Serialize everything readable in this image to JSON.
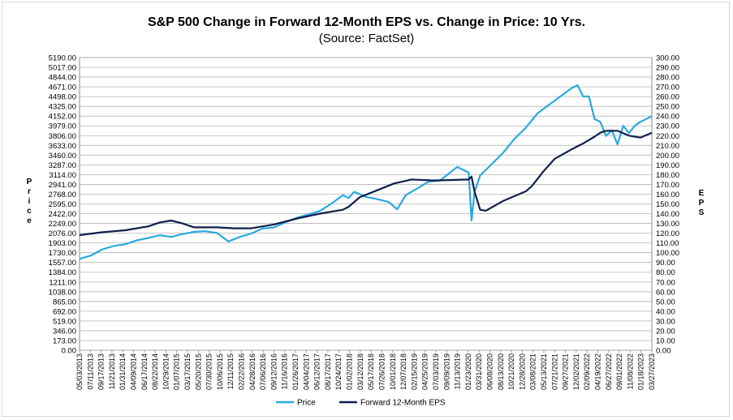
{
  "chart_data": {
    "type": "line",
    "title": "S&P 500 Change in Forward 12-Month EPS vs. Change in Price: 10 Yrs.",
    "subtitle": "(Source: FactSet)",
    "ylabel_left": "Price",
    "ylabel_right": "EPS",
    "ylim_left": [
      0,
      5190
    ],
    "ylim_right": [
      0,
      300
    ],
    "y_ticks_left": [
      "5190.00",
      "5017.00",
      "4844.00",
      "4671.00",
      "4498.00",
      "4325.00",
      "4152.00",
      "3979.00",
      "3806.00",
      "3633.00",
      "3460.00",
      "3287.00",
      "3114.00",
      "2941.00",
      "2768.00",
      "2595.00",
      "2422.00",
      "2249.00",
      "2076.00",
      "1903.00",
      "1730.00",
      "1557.00",
      "1384.00",
      "1211.00",
      "1038.00",
      "865.00",
      "692.00",
      "519.00",
      "346.00",
      "173.00",
      "0.00"
    ],
    "y_ticks_right": [
      "300.00",
      "290.00",
      "280.00",
      "270.00",
      "260.00",
      "250.00",
      "240.00",
      "230.00",
      "220.00",
      "210.00",
      "200.00",
      "190.00",
      "180.00",
      "170.00",
      "160.00",
      "150.00",
      "140.00",
      "130.00",
      "120.00",
      "110.00",
      "100.00",
      "90.00",
      "80.00",
      "70.00",
      "60.00",
      "50.00",
      "40.00",
      "30.00",
      "20.00",
      "10.00",
      "0.00"
    ],
    "x_ticks": [
      "05/03/2013",
      "07/11/2013",
      "09/17/2013",
      "11/21/2013",
      "01/31/2014",
      "04/09/2014",
      "06/17/2014",
      "08/22/2014",
      "10/29/2014",
      "01/07/2015",
      "03/17/2015",
      "05/20/2015",
      "07/30/2015",
      "10/06/2015",
      "12/11/2015",
      "02/22/2016",
      "04/28/2016",
      "07/06/2016",
      "09/12/2016",
      "11/16/2016",
      "01/26/2017",
      "04/04/2017",
      "06/12/2017",
      "08/17/2017",
      "10/24/2017",
      "01/02/2018",
      "03/12/2018",
      "05/17/2018",
      "07/26/2018",
      "10/01/2018",
      "12/07/2018",
      "02/15/2019",
      "04/25/2019",
      "07/03/2019",
      "09/09/2019",
      "11/13/2019",
      "01/23/2020",
      "03/31/2020",
      "06/08/2020",
      "08/13/2020",
      "10/21/2020",
      "12/28/2020",
      "03/08/2021",
      "05/13/2021",
      "07/21/2021",
      "09/27/2021",
      "12/02/2021",
      "02/09/2022",
      "04/19/2022",
      "06/27/2022",
      "09/01/2022",
      "11/08/2022",
      "01/18/2023",
      "03/27/2023"
    ],
    "grid": true,
    "legend_position": "bottom",
    "colors": {
      "price": "#29A8E0",
      "eps": "#0F1F4B"
    },
    "series": [
      {
        "name": "Price",
        "axis": "left",
        "t": [
          0.0,
          0.02,
          0.04,
          0.06,
          0.08,
          0.1,
          0.12,
          0.14,
          0.16,
          0.18,
          0.2,
          0.22,
          0.24,
          0.26,
          0.28,
          0.3,
          0.32,
          0.34,
          0.36,
          0.38,
          0.4,
          0.42,
          0.44,
          0.46,
          0.47,
          0.48,
          0.5,
          0.52,
          0.54,
          0.555,
          0.57,
          0.59,
          0.61,
          0.63,
          0.66,
          0.68,
          0.685,
          0.69,
          0.7,
          0.72,
          0.74,
          0.76,
          0.78,
          0.8,
          0.82,
          0.84,
          0.86,
          0.87,
          0.88,
          0.89,
          0.9,
          0.91,
          0.92,
          0.93,
          0.94,
          0.95,
          0.96,
          0.97,
          0.98,
          0.99,
          1.0
        ],
        "values": [
          1620,
          1680,
          1790,
          1850,
          1880,
          1950,
          1990,
          2040,
          2010,
          2060,
          2100,
          2110,
          2080,
          1930,
          2010,
          2070,
          2160,
          2180,
          2270,
          2350,
          2410,
          2470,
          2600,
          2750,
          2700,
          2810,
          2720,
          2680,
          2630,
          2500,
          2750,
          2870,
          2990,
          3010,
          3250,
          3150,
          2300,
          2800,
          3100,
          3300,
          3500,
          3750,
          3950,
          4200,
          4350,
          4500,
          4650,
          4700,
          4500,
          4500,
          4100,
          4050,
          3800,
          3900,
          3650,
          3980,
          3850,
          3980,
          4050,
          4100,
          4150
        ]
      },
      {
        "name": "Forward 12-Month EPS",
        "axis": "right",
        "t": [
          0.0,
          0.04,
          0.08,
          0.12,
          0.14,
          0.16,
          0.18,
          0.2,
          0.24,
          0.27,
          0.3,
          0.34,
          0.38,
          0.42,
          0.46,
          0.47,
          0.49,
          0.52,
          0.55,
          0.58,
          0.62,
          0.68,
          0.685,
          0.69,
          0.7,
          0.71,
          0.74,
          0.78,
          0.79,
          0.81,
          0.83,
          0.86,
          0.88,
          0.9,
          0.91,
          0.92,
          0.94,
          0.96,
          0.98,
          1.0
        ],
        "values": [
          118,
          121,
          123,
          127,
          131,
          133,
          130,
          126,
          126,
          125,
          125,
          129,
          135,
          140,
          144,
          147,
          157,
          164,
          171,
          175,
          174,
          175,
          178,
          163,
          144,
          143,
          153,
          163,
          168,
          183,
          196,
          206,
          212,
          219,
          223,
          225,
          225,
          220,
          218,
          223
        ]
      }
    ]
  }
}
